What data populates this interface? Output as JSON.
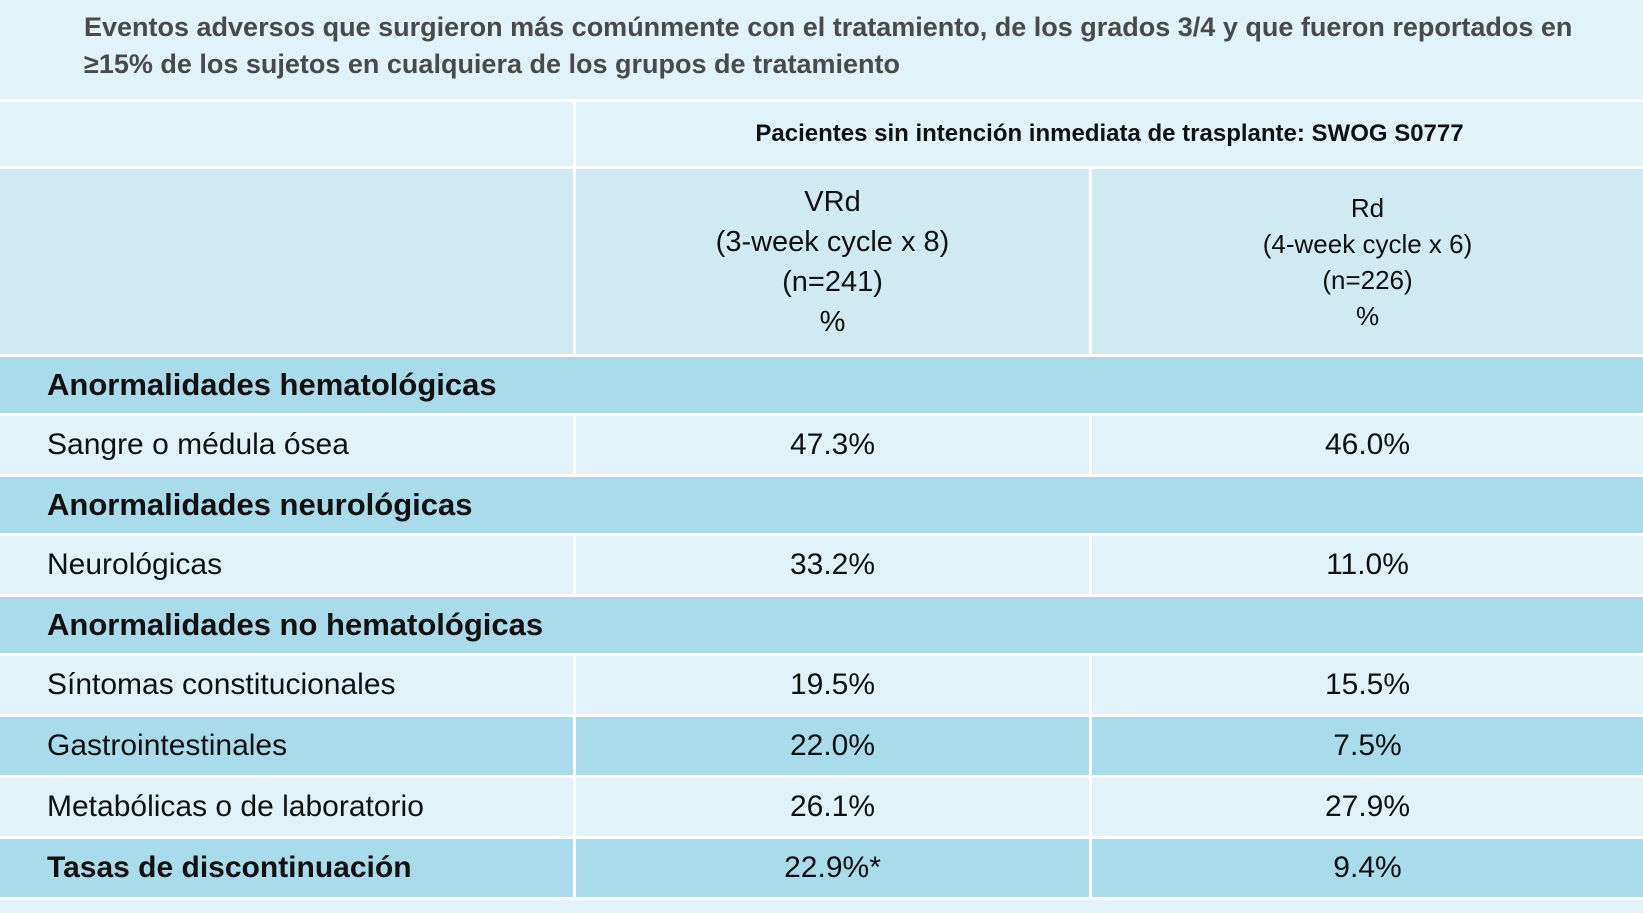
{
  "title": "Eventos adversos que surgieron más comúnmente con el tratamiento, de los grados 3/4 y que fueron reportados en ≥15% de los sujetos en cualquiera de los grupos de tratamiento",
  "group_header": "Pacientes sin intención inmediata de trasplante: SWOG S0777",
  "columns": [
    {
      "name": "VRd",
      "cycle": "(3-week cycle x 8)",
      "n": "(n=241)",
      "unit": "%"
    },
    {
      "name": "Rd",
      "cycle": "(4-week cycle x 6)",
      "n": "(n=226)",
      "unit": "%"
    }
  ],
  "sections": [
    {
      "label": "Anormalidades hematológicas"
    },
    {
      "label": "Anormalidades neurológicas"
    },
    {
      "label": "Anormalidades no hematológicas"
    }
  ],
  "rows": [
    {
      "label": "Sangre o médula ósea",
      "vrd": "47.3%",
      "rd": "46.0%"
    },
    {
      "label": "Neurológicas",
      "vrd": "33.2%",
      "rd": "11.0%"
    },
    {
      "label": "Síntomas constitucionales",
      "vrd": "19.5%",
      "rd": "15.5%"
    },
    {
      "label": "Gastrointestinales",
      "vrd": "22.0%",
      "rd": "7.5%"
    },
    {
      "label": "Metabólicas o de laboratorio",
      "vrd": "26.1%",
      "rd": "27.9%"
    },
    {
      "label": "Tasas de discontinuación",
      "vrd": "22.9%*",
      "rd": "9.4%"
    }
  ],
  "colors": {
    "light_row": "#e1f2f9",
    "dark_row": "#a9dbea",
    "subheader": "#cfeaf1",
    "title_text": "#4a4a4a"
  }
}
